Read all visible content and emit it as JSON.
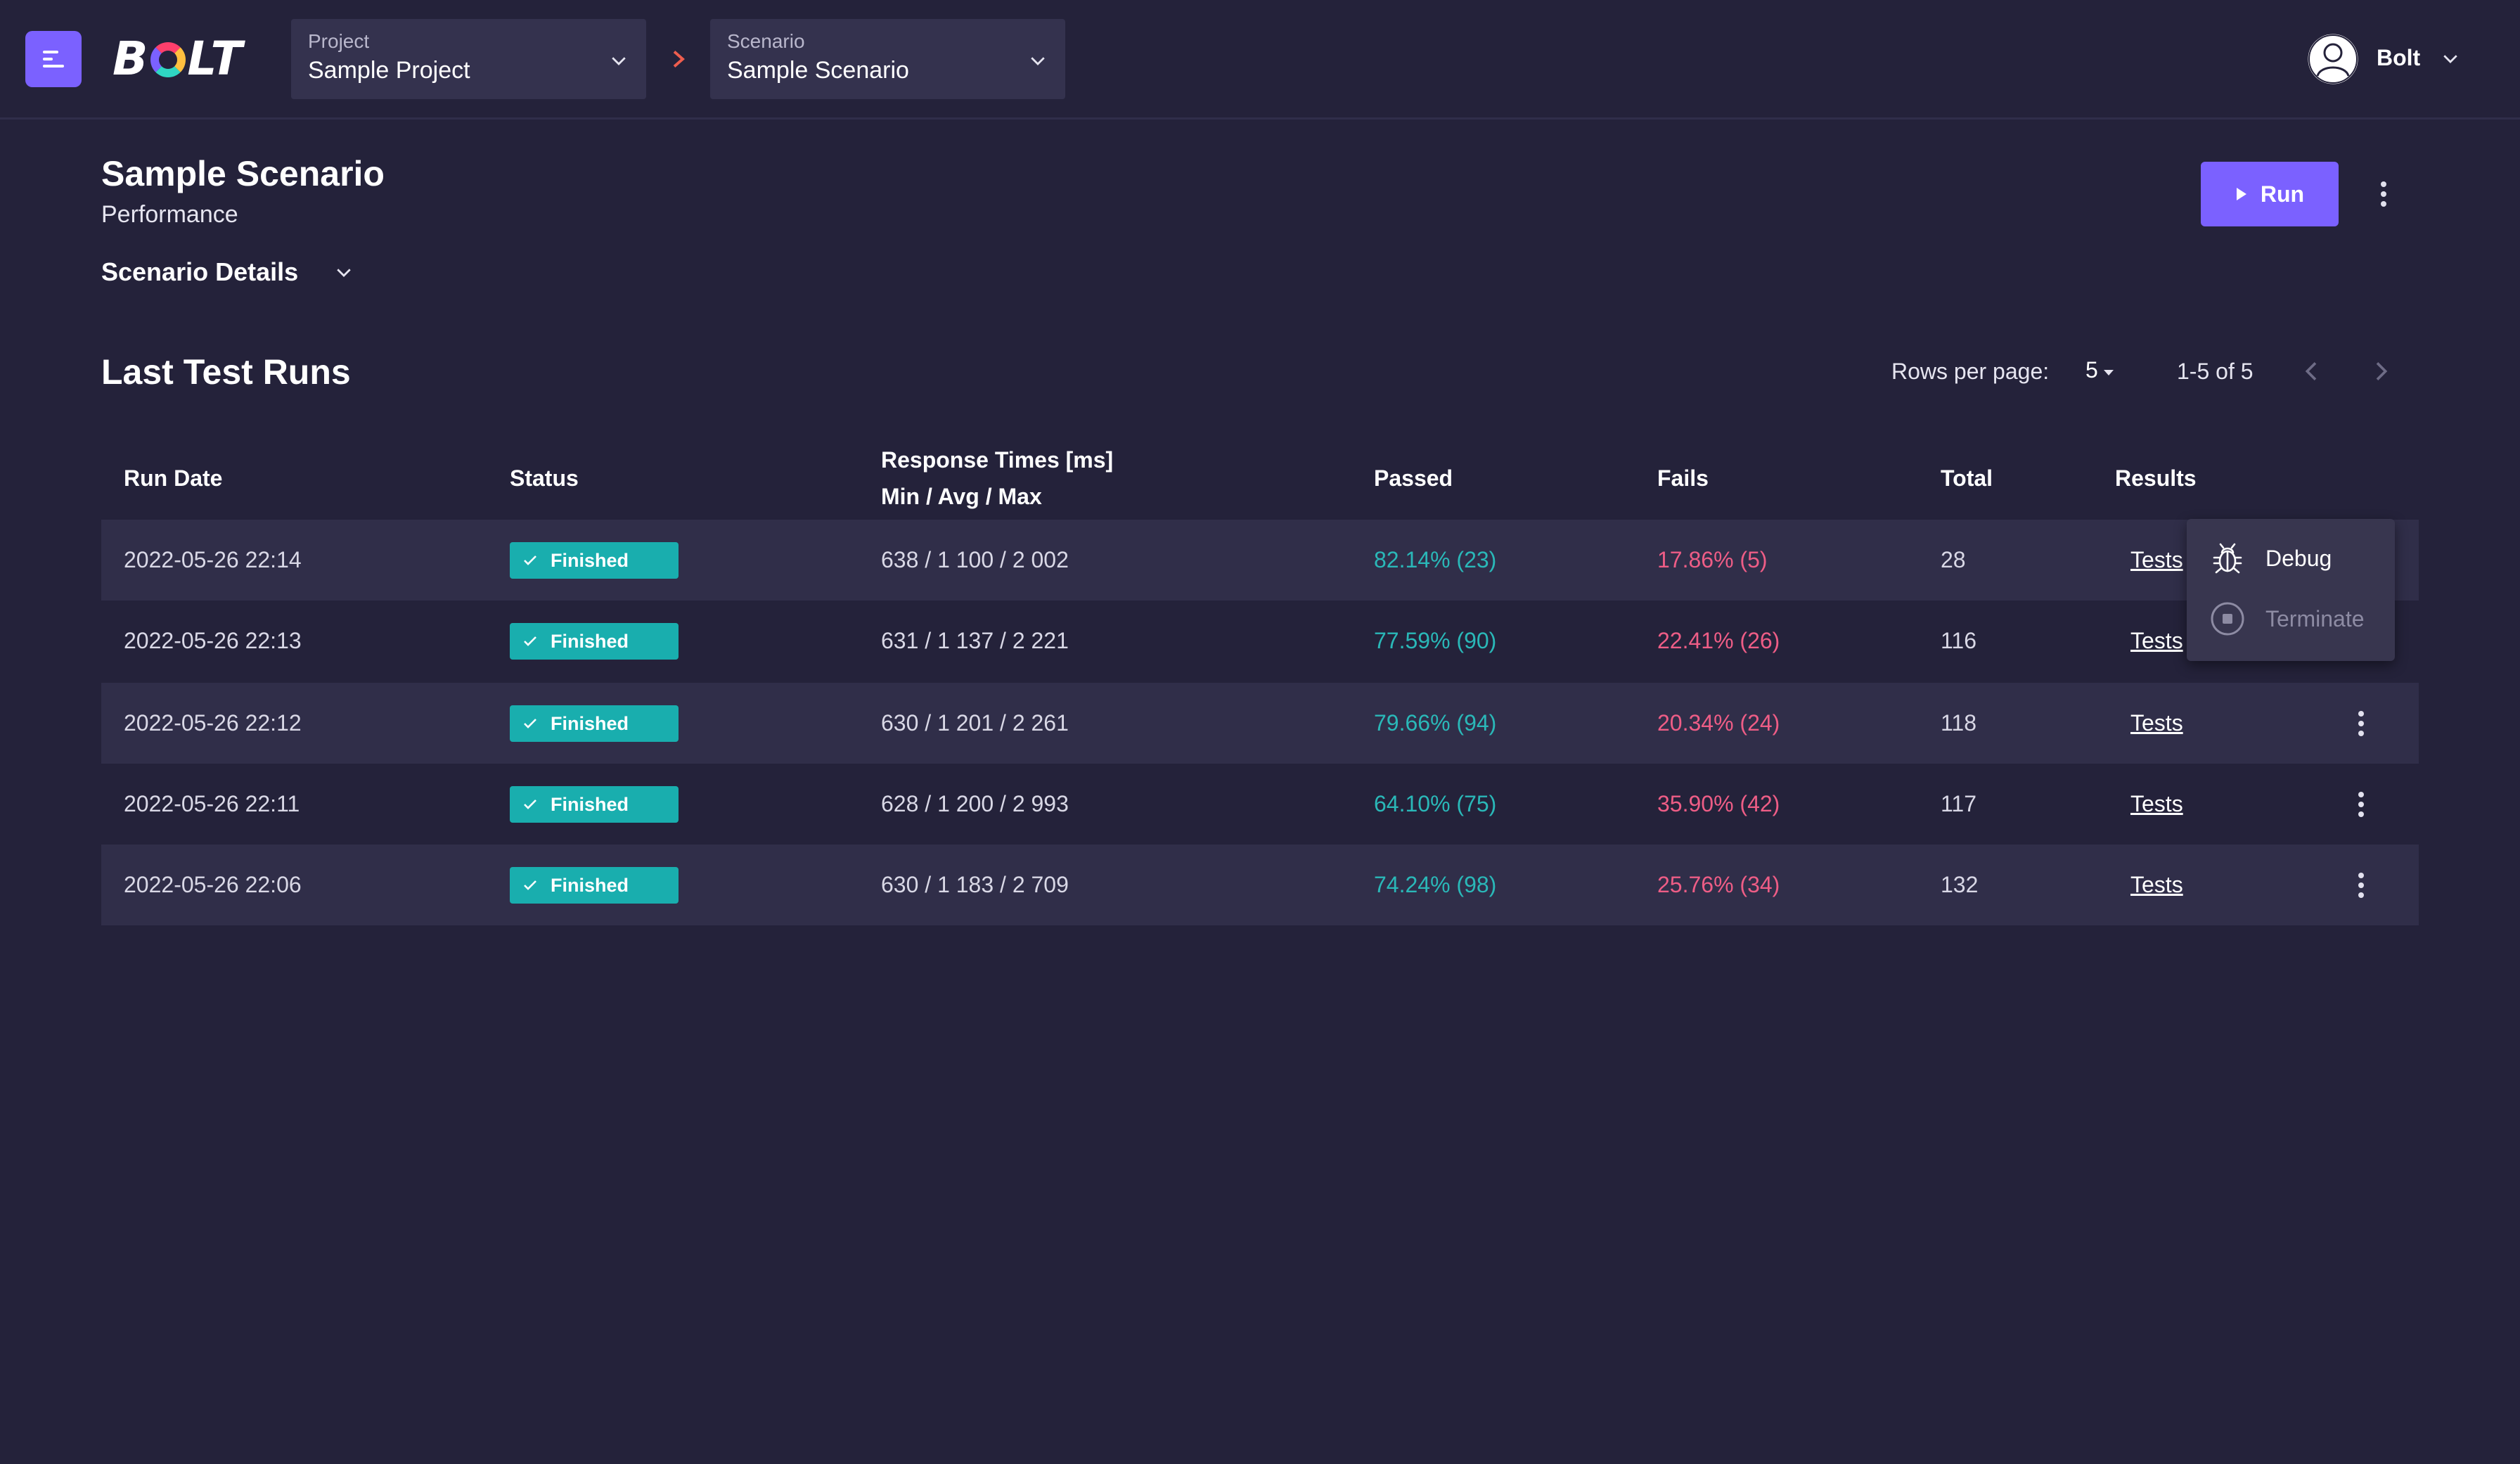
{
  "header": {
    "logo": "BOLT",
    "project": {
      "label": "Project",
      "value": "Sample Project"
    },
    "scenario": {
      "label": "Scenario",
      "value": "Sample Scenario"
    },
    "user": {
      "name": "Bolt"
    }
  },
  "page": {
    "title": "Sample Scenario",
    "subtitle": "Performance",
    "details_label": "Scenario Details",
    "run_label": "Run"
  },
  "runs": {
    "title": "Last Test Runs",
    "rows_per_page_label": "Rows per page:",
    "rows_per_page": "5",
    "range": "1-5 of 5",
    "columns": {
      "run_date": "Run Date",
      "status": "Status",
      "response_times": "Response Times [ms]",
      "response_times_sub": "Min / Avg / Max",
      "passed": "Passed",
      "fails": "Fails",
      "total": "Total",
      "results": "Results"
    },
    "rows": [
      {
        "date": "2022-05-26 22:14",
        "status": "Finished",
        "times": "638 / 1 100 / 2 002",
        "passed": "82.14% (23)",
        "fails": "17.86% (5)",
        "total": "28",
        "results": "Tests"
      },
      {
        "date": "2022-05-26 22:13",
        "status": "Finished",
        "times": "631 / 1 137 / 2 221",
        "passed": "77.59% (90)",
        "fails": "22.41% (26)",
        "total": "116",
        "results": "Tests"
      },
      {
        "date": "2022-05-26 22:12",
        "status": "Finished",
        "times": "630 / 1 201 / 2 261",
        "passed": "79.66% (94)",
        "fails": "20.34% (24)",
        "total": "118",
        "results": "Tests"
      },
      {
        "date": "2022-05-26 22:11",
        "status": "Finished",
        "times": "628 / 1 200 / 2 993",
        "passed": "64.10% (75)",
        "fails": "35.90% (42)",
        "total": "117",
        "results": "Tests"
      },
      {
        "date": "2022-05-26 22:06",
        "status": "Finished",
        "times": "630 / 1 183 / 2 709",
        "passed": "74.24% (98)",
        "fails": "25.76% (34)",
        "total": "132",
        "results": "Tests"
      }
    ]
  },
  "context_menu": {
    "items": [
      {
        "label": "Debug",
        "icon": "bug-icon",
        "enabled": true
      },
      {
        "label": "Terminate",
        "icon": "stop-circle-icon",
        "enabled": false
      }
    ]
  },
  "colors": {
    "background": "#24223a",
    "accent": "#7b61ff",
    "status_finished": "#19aeae",
    "passed": "#2ab8b8",
    "fails": "#ee5d86"
  }
}
